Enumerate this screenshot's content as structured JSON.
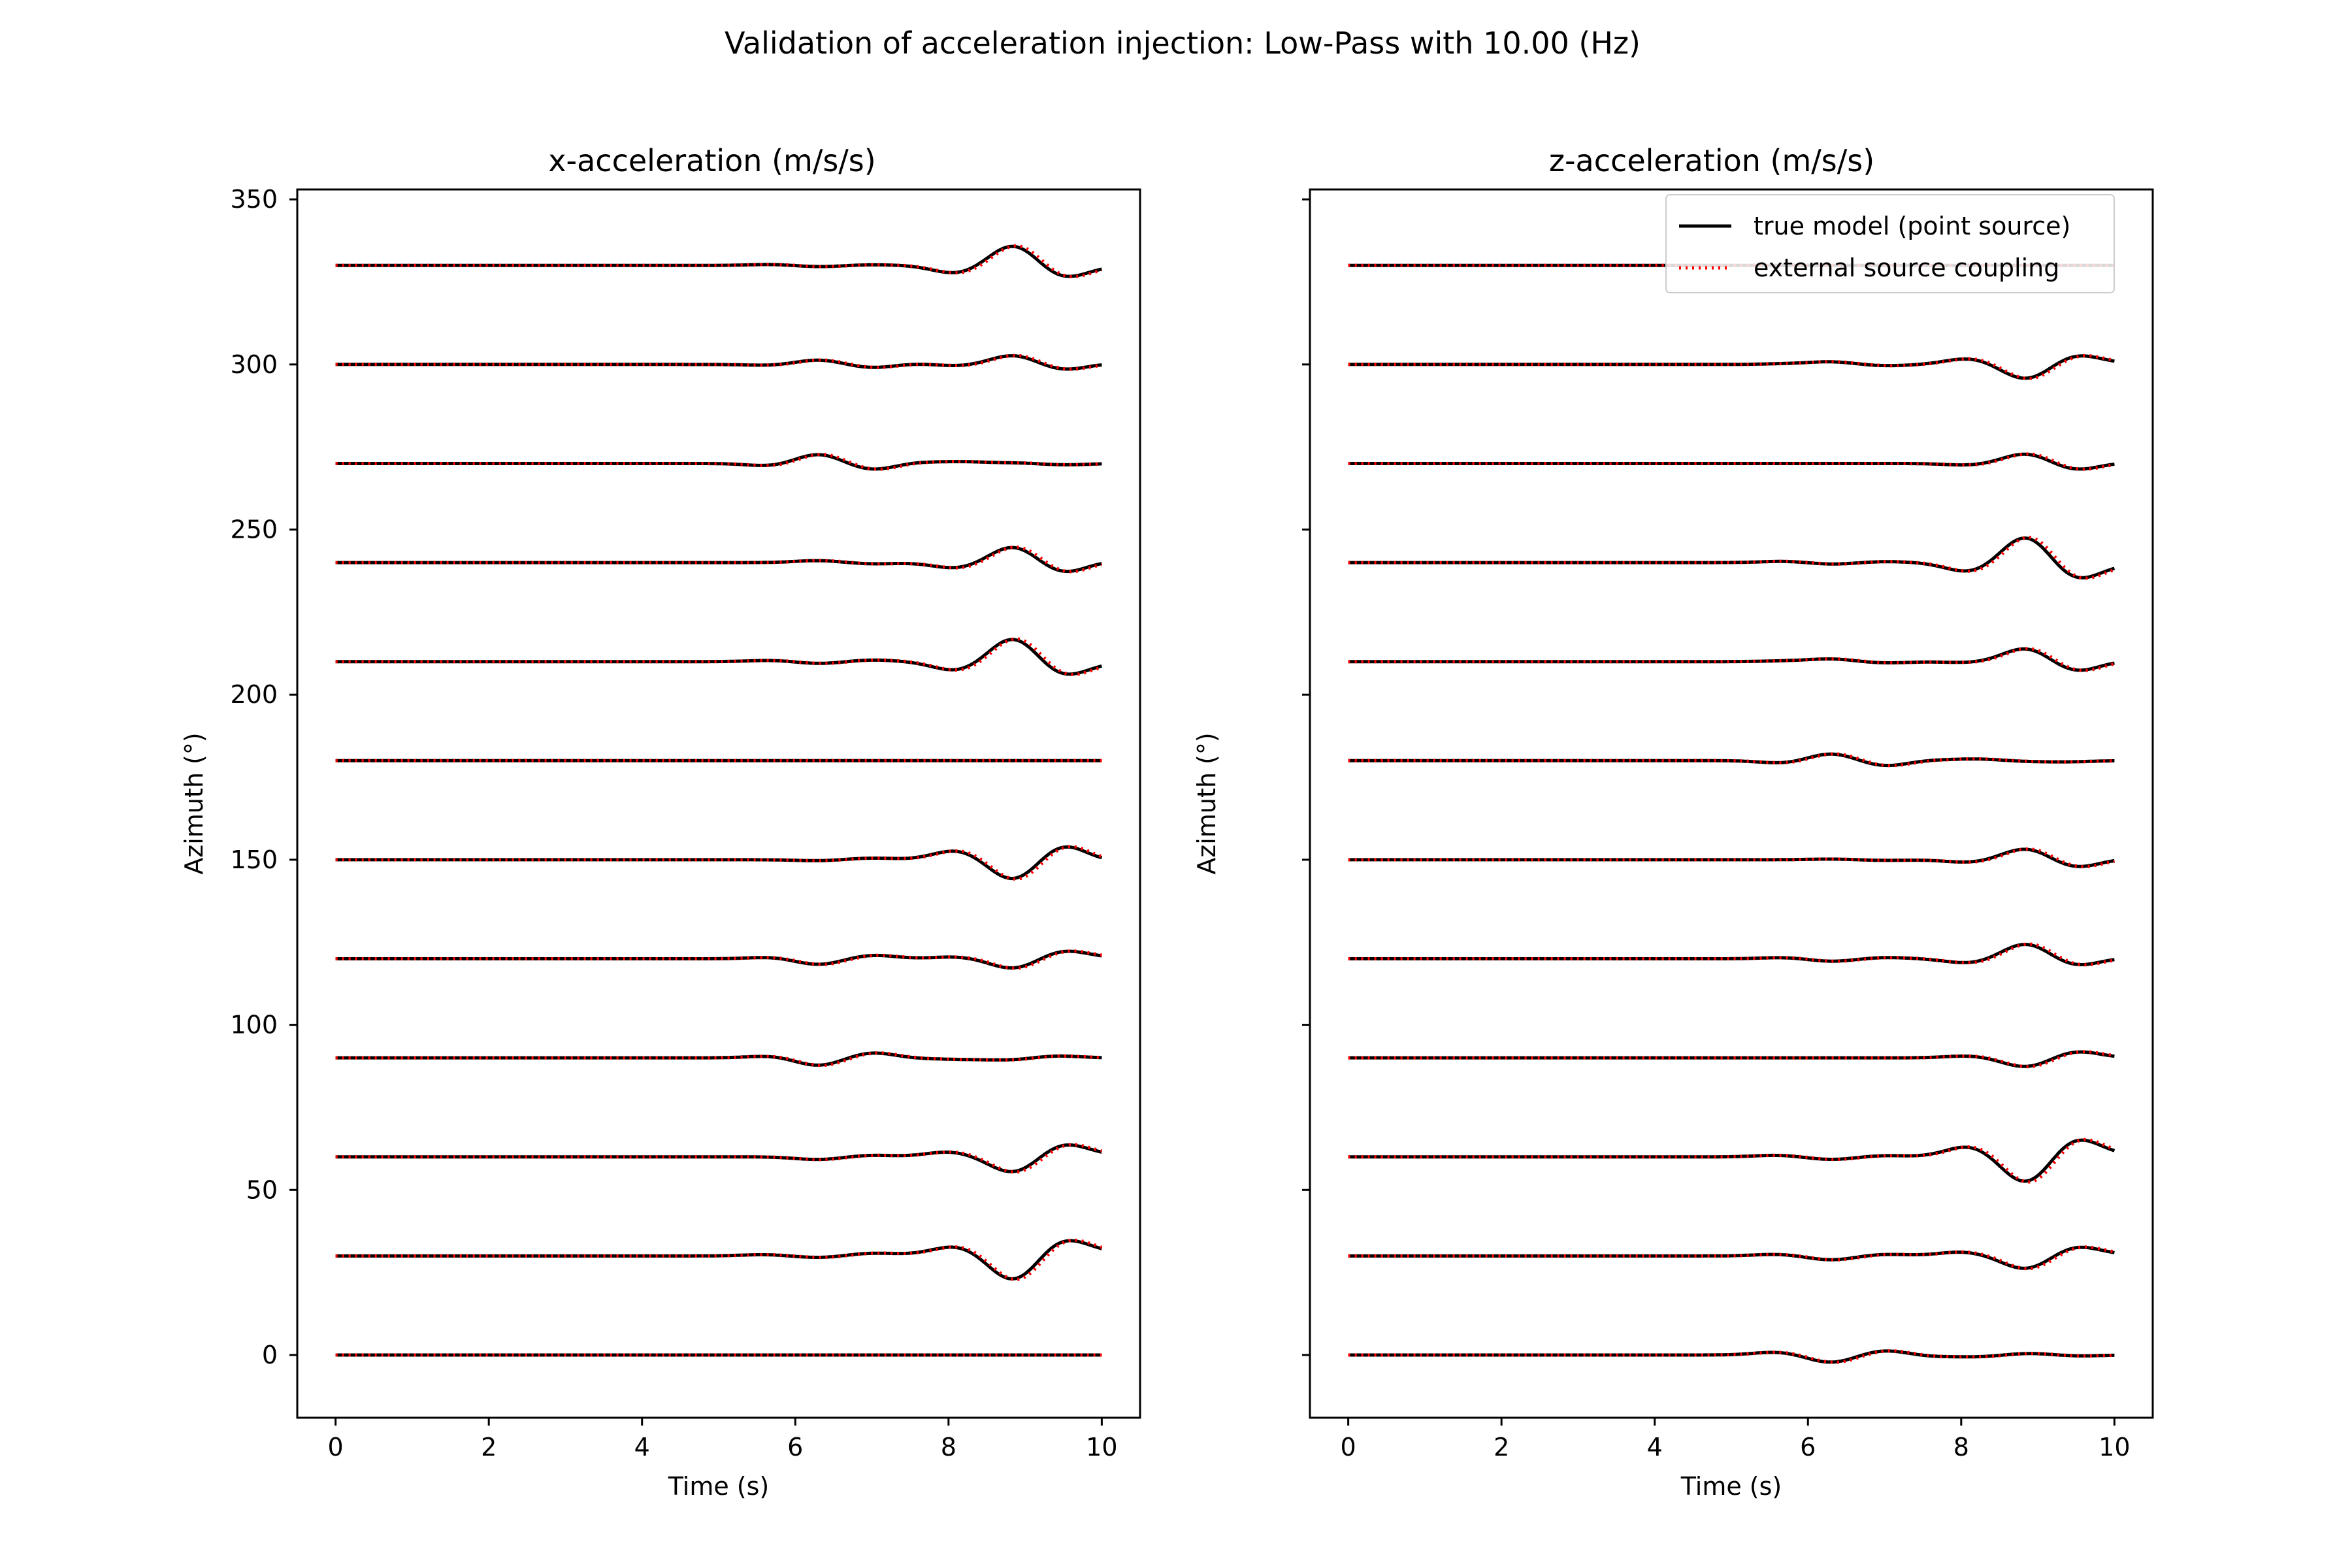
{
  "chart_data": {
    "type": "line",
    "title": "Validation of acceleration injection: Low-Pass with 10.00 (Hz)",
    "x_range": [
      0,
      10
    ],
    "xlim": [
      -0.5,
      10.5
    ],
    "ylim": [
      -19,
      353
    ],
    "xticks": [
      0,
      2,
      4,
      6,
      8,
      10
    ],
    "yticks": [
      0,
      50,
      100,
      150,
      200,
      250,
      300,
      350
    ],
    "grid": false,
    "legend": {
      "placement": "top-right of right panel",
      "entries": [
        {
          "label": "true model (point source)",
          "color": "#000000",
          "style": "solid"
        },
        {
          "label": "external source coupling",
          "color": "#ff0000",
          "style": "dotted"
        }
      ]
    },
    "panels": [
      {
        "title": "x-acceleration (m/s/s)",
        "xlabel": "Time (s)",
        "ylabel": "Azimuth (°)",
        "show_ytick_labels": true,
        "traces": [
          {
            "offset": 0,
            "events": []
          },
          {
            "offset": 30,
            "events": [
              [
                5.6,
                0.4
              ],
              [
                6.3,
                -0.5
              ],
              [
                7.0,
                0.8
              ],
              [
                7.6,
                0.3
              ],
              [
                8.1,
                2.8
              ],
              [
                8.85,
                -7.5
              ],
              [
                9.5,
                4.8
              ],
              [
                10.0,
                1.0
              ]
            ]
          },
          {
            "offset": 60,
            "events": [
              [
                6.3,
                -0.8
              ],
              [
                7.0,
                0.5
              ],
              [
                8.0,
                1.5
              ],
              [
                8.85,
                -4.8
              ],
              [
                9.5,
                3.8
              ],
              [
                10.0,
                0.5
              ]
            ]
          },
          {
            "offset": 90,
            "events": [
              [
                5.7,
                0.6
              ],
              [
                6.3,
                -2.4
              ],
              [
                7.0,
                1.6
              ],
              [
                7.6,
                -0.2
              ],
              [
                8.2,
                -0.4
              ],
              [
                8.8,
                -0.6
              ],
              [
                9.4,
                0.6
              ]
            ]
          },
          {
            "offset": 120,
            "events": [
              [
                5.7,
                0.5
              ],
              [
                6.3,
                -1.8
              ],
              [
                7.0,
                1.1
              ],
              [
                8.1,
                0.6
              ],
              [
                8.85,
                -3.0
              ],
              [
                9.5,
                2.4
              ],
              [
                10.0,
                0.3
              ]
            ]
          },
          {
            "offset": 150,
            "events": [
              [
                6.3,
                -0.3
              ],
              [
                7.0,
                0.5
              ],
              [
                8.1,
                2.8
              ],
              [
                8.85,
                -6.2
              ],
              [
                9.5,
                4.5
              ],
              [
                10.0,
                -0.5
              ]
            ]
          },
          {
            "offset": 180,
            "events": []
          },
          {
            "offset": 210,
            "events": [
              [
                5.7,
                0.4
              ],
              [
                6.3,
                -0.6
              ],
              [
                7.0,
                0.5
              ],
              [
                8.1,
                -2.7
              ],
              [
                8.85,
                7.2
              ],
              [
                9.5,
                -4.2
              ],
              [
                10.0,
                -0.3
              ]
            ]
          },
          {
            "offset": 240,
            "events": [
              [
                6.3,
                0.6
              ],
              [
                7.0,
                -0.4
              ],
              [
                8.1,
                -1.7
              ],
              [
                8.85,
                4.9
              ],
              [
                9.5,
                -3.2
              ],
              [
                10.0,
                0.5
              ]
            ]
          },
          {
            "offset": 270,
            "events": [
              [
                5.7,
                -0.8
              ],
              [
                6.3,
                2.9
              ],
              [
                7.0,
                -1.9
              ],
              [
                7.6,
                0.4
              ],
              [
                8.2,
                0.5
              ],
              [
                8.9,
                0.2
              ],
              [
                9.5,
                -0.4
              ]
            ]
          },
          {
            "offset": 300,
            "events": [
              [
                5.7,
                -0.3
              ],
              [
                6.3,
                1.4
              ],
              [
                7.0,
                -1.0
              ],
              [
                7.6,
                0.3
              ],
              [
                8.1,
                -0.5
              ],
              [
                8.85,
                2.8
              ],
              [
                9.5,
                -1.7
              ],
              [
                10.0,
                0.3
              ]
            ]
          },
          {
            "offset": 330,
            "events": [
              [
                5.7,
                0.3
              ],
              [
                6.3,
                -0.4
              ],
              [
                7.0,
                0.2
              ],
              [
                8.1,
                -2.4
              ],
              [
                8.85,
                6.2
              ],
              [
                9.5,
                -3.7
              ],
              [
                10.0,
                -0.2
              ]
            ]
          }
        ]
      },
      {
        "title": "z-acceleration (m/s/s)",
        "xlabel": "Time (s)",
        "ylabel": "Azimuth (°)",
        "show_ytick_labels": false,
        "traces": [
          {
            "offset": 0,
            "events": [
              [
                5.6,
                0.9
              ],
              [
                6.3,
                -2.3
              ],
              [
                7.0,
                1.4
              ],
              [
                7.6,
                -0.4
              ],
              [
                8.2,
                -0.5
              ],
              [
                8.9,
                0.5
              ],
              [
                9.5,
                -0.3
              ]
            ]
          },
          {
            "offset": 30,
            "events": [
              [
                5.6,
                0.5
              ],
              [
                6.3,
                -1.2
              ],
              [
                7.0,
                0.5
              ],
              [
                8.0,
                1.2
              ],
              [
                8.85,
                -4.0
              ],
              [
                9.5,
                2.8
              ],
              [
                10.0,
                0.3
              ]
            ]
          },
          {
            "offset": 60,
            "events": [
              [
                5.6,
                0.5
              ],
              [
                6.3,
                -0.8
              ],
              [
                7.0,
                0.4
              ],
              [
                8.1,
                3.2
              ],
              [
                8.85,
                -8.0
              ],
              [
                9.5,
                5.5
              ],
              [
                10.0,
                0.5
              ]
            ]
          },
          {
            "offset": 90,
            "events": [
              [
                8.1,
                0.6
              ],
              [
                8.85,
                -2.8
              ],
              [
                9.5,
                2.0
              ]
            ]
          },
          {
            "offset": 120,
            "events": [
              [
                5.7,
                0.4
              ],
              [
                6.3,
                -0.8
              ],
              [
                7.0,
                0.4
              ],
              [
                8.1,
                -1.3
              ],
              [
                8.85,
                4.6
              ],
              [
                9.5,
                -2.2
              ],
              [
                10.0,
                0.3
              ]
            ]
          },
          {
            "offset": 150,
            "events": [
              [
                6.3,
                0.2
              ],
              [
                7.0,
                -0.2
              ],
              [
                8.1,
                -0.8
              ],
              [
                8.85,
                3.4
              ],
              [
                9.5,
                -2.4
              ],
              [
                10.0,
                0.3
              ]
            ]
          },
          {
            "offset": 180,
            "events": [
              [
                5.7,
                -0.8
              ],
              [
                6.3,
                2.2
              ],
              [
                7.0,
                -1.6
              ],
              [
                7.6,
                0.2
              ],
              [
                8.2,
                0.5
              ],
              [
                8.9,
                -0.2
              ],
              [
                9.4,
                -0.3
              ]
            ]
          },
          {
            "offset": 210,
            "events": [
              [
                5.7,
                0.2
              ],
              [
                6.3,
                0.8
              ],
              [
                7.0,
                -0.4
              ],
              [
                8.1,
                -0.3
              ],
              [
                8.85,
                4.1
              ],
              [
                9.5,
                -3.0
              ],
              [
                10.0,
                0.3
              ]
            ]
          },
          {
            "offset": 240,
            "events": [
              [
                5.7,
                0.4
              ],
              [
                6.3,
                -0.5
              ],
              [
                7.0,
                0.3
              ],
              [
                8.1,
                -2.8
              ],
              [
                8.85,
                8.0
              ],
              [
                9.5,
                -5.0
              ],
              [
                10.0,
                -0.5
              ]
            ]
          },
          {
            "offset": 270,
            "events": [
              [
                8.1,
                -0.5
              ],
              [
                8.85,
                3.0
              ],
              [
                9.5,
                -2.0
              ],
              [
                10.0,
                0.3
              ]
            ]
          },
          {
            "offset": 300,
            "events": [
              [
                5.7,
                0.2
              ],
              [
                6.3,
                0.8
              ],
              [
                7.0,
                -0.4
              ],
              [
                8.1,
                1.8
              ],
              [
                8.85,
                -4.5
              ],
              [
                9.5,
                2.8
              ],
              [
                10.0,
                0.3
              ]
            ]
          },
          {
            "offset": 330,
            "events": []
          }
        ]
      }
    ]
  }
}
